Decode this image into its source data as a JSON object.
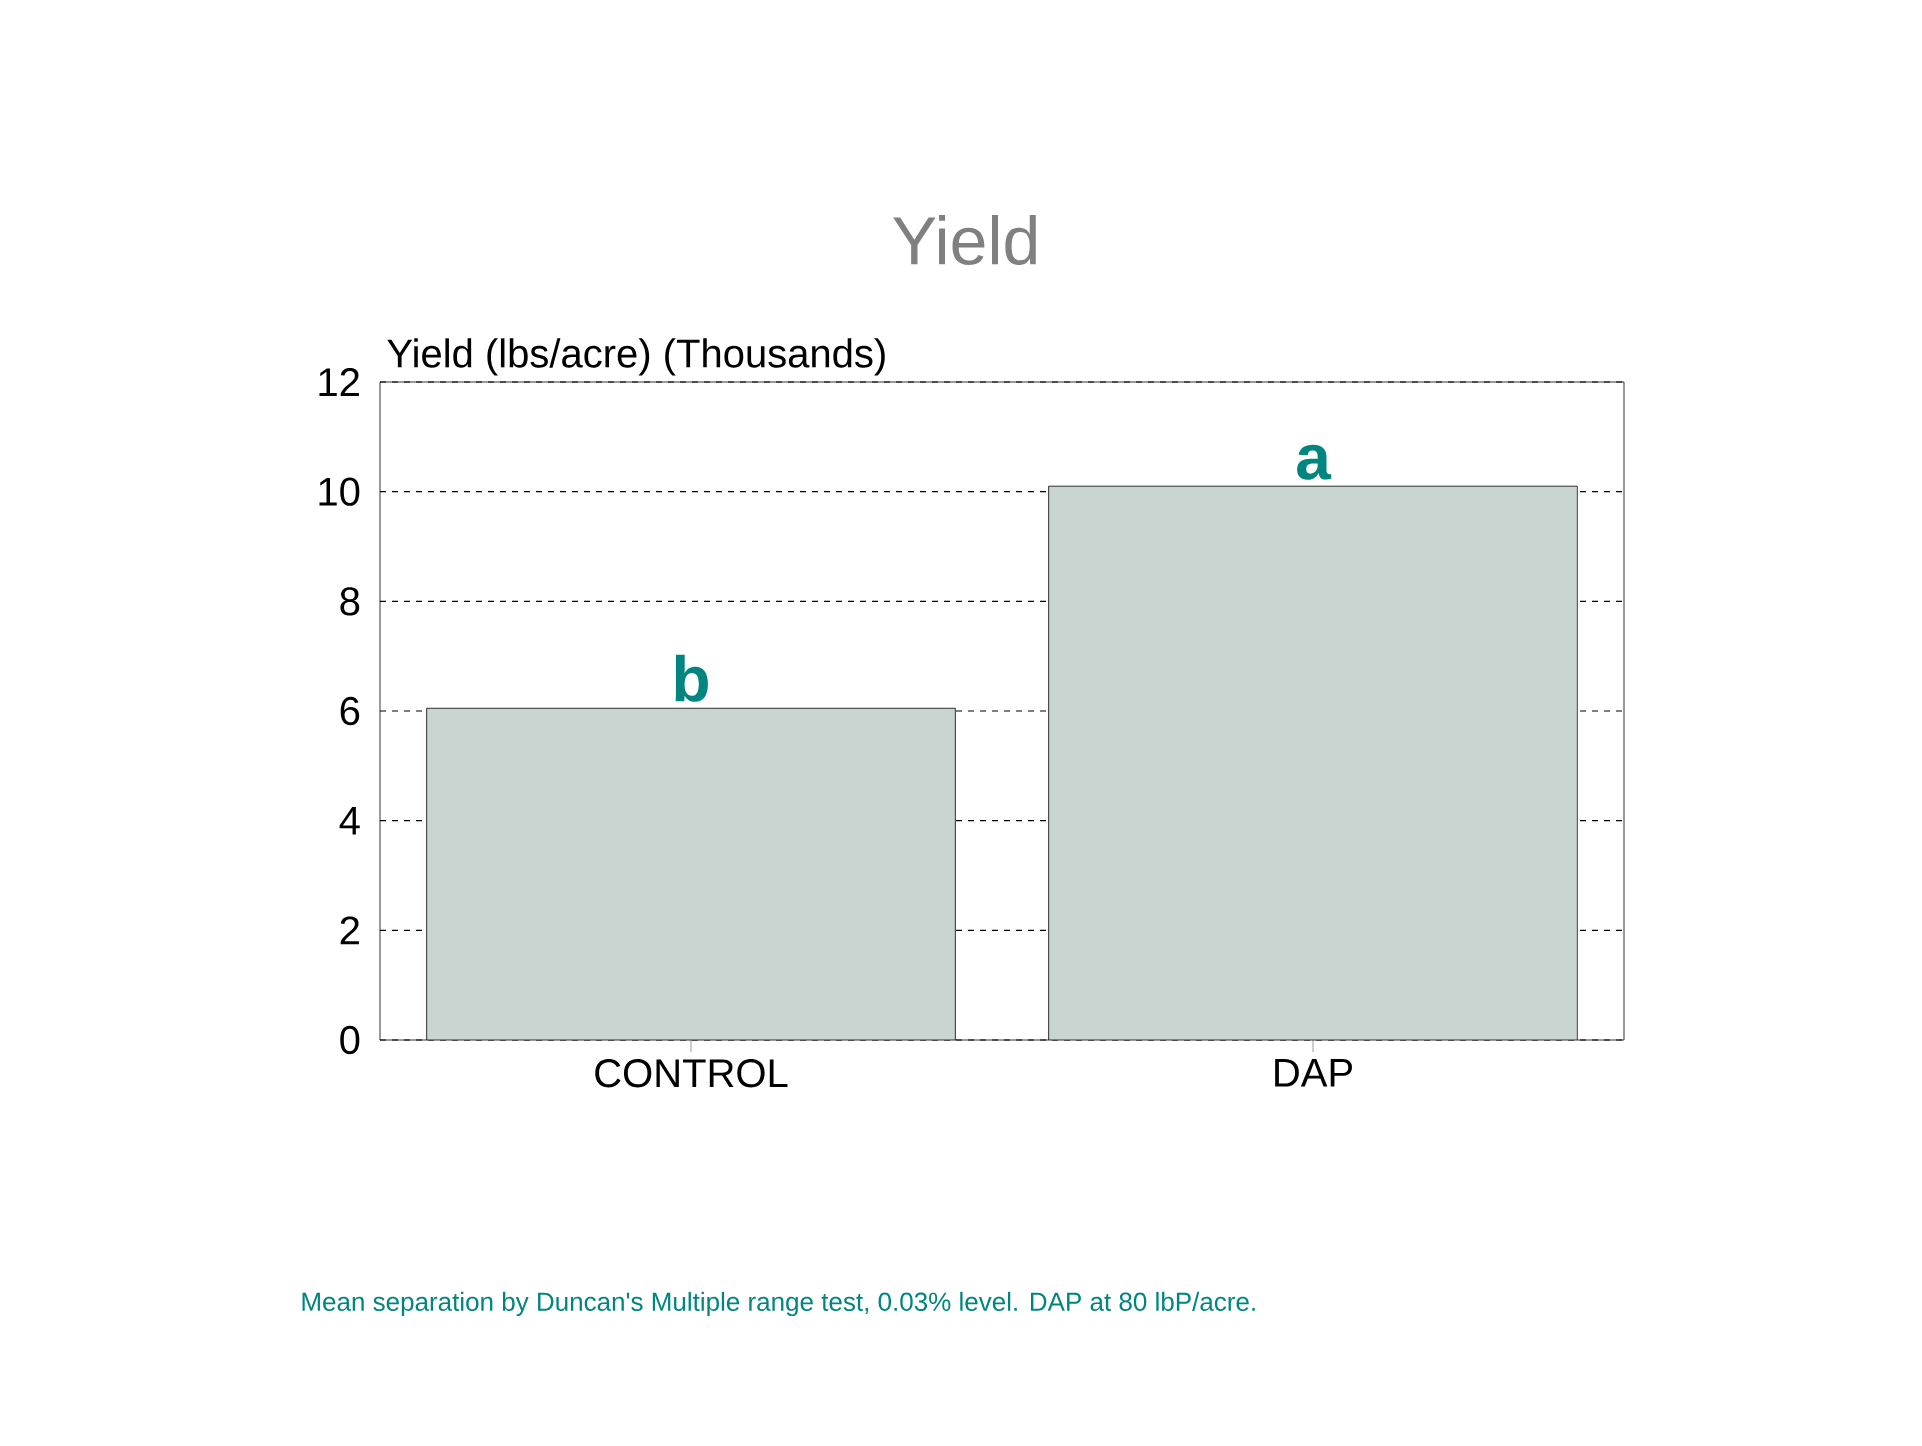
{
  "chart_data": {
    "type": "bar",
    "title": "Yield",
    "ylabel": "Yield (lbs/acre)  (Thousands)",
    "categories": [
      "CONTROL",
      "DAP"
    ],
    "values": [
      6.05,
      10.1
    ],
    "color": "#c9d5d1",
    "ylim": [
      0,
      12
    ],
    "yticks": [
      0,
      2,
      4,
      6,
      8,
      10,
      12
    ],
    "grid": "y",
    "annotations": [
      {
        "text": "b",
        "x": "CONTROL",
        "y": 6.05
      },
      {
        "text": "a",
        "x": "DAP",
        "y": 10.1
      },
      "Mean separation by Duncan's Multiple range test,  0.03% level.  DAP at 80 lbP/acre."
    ]
  }
}
